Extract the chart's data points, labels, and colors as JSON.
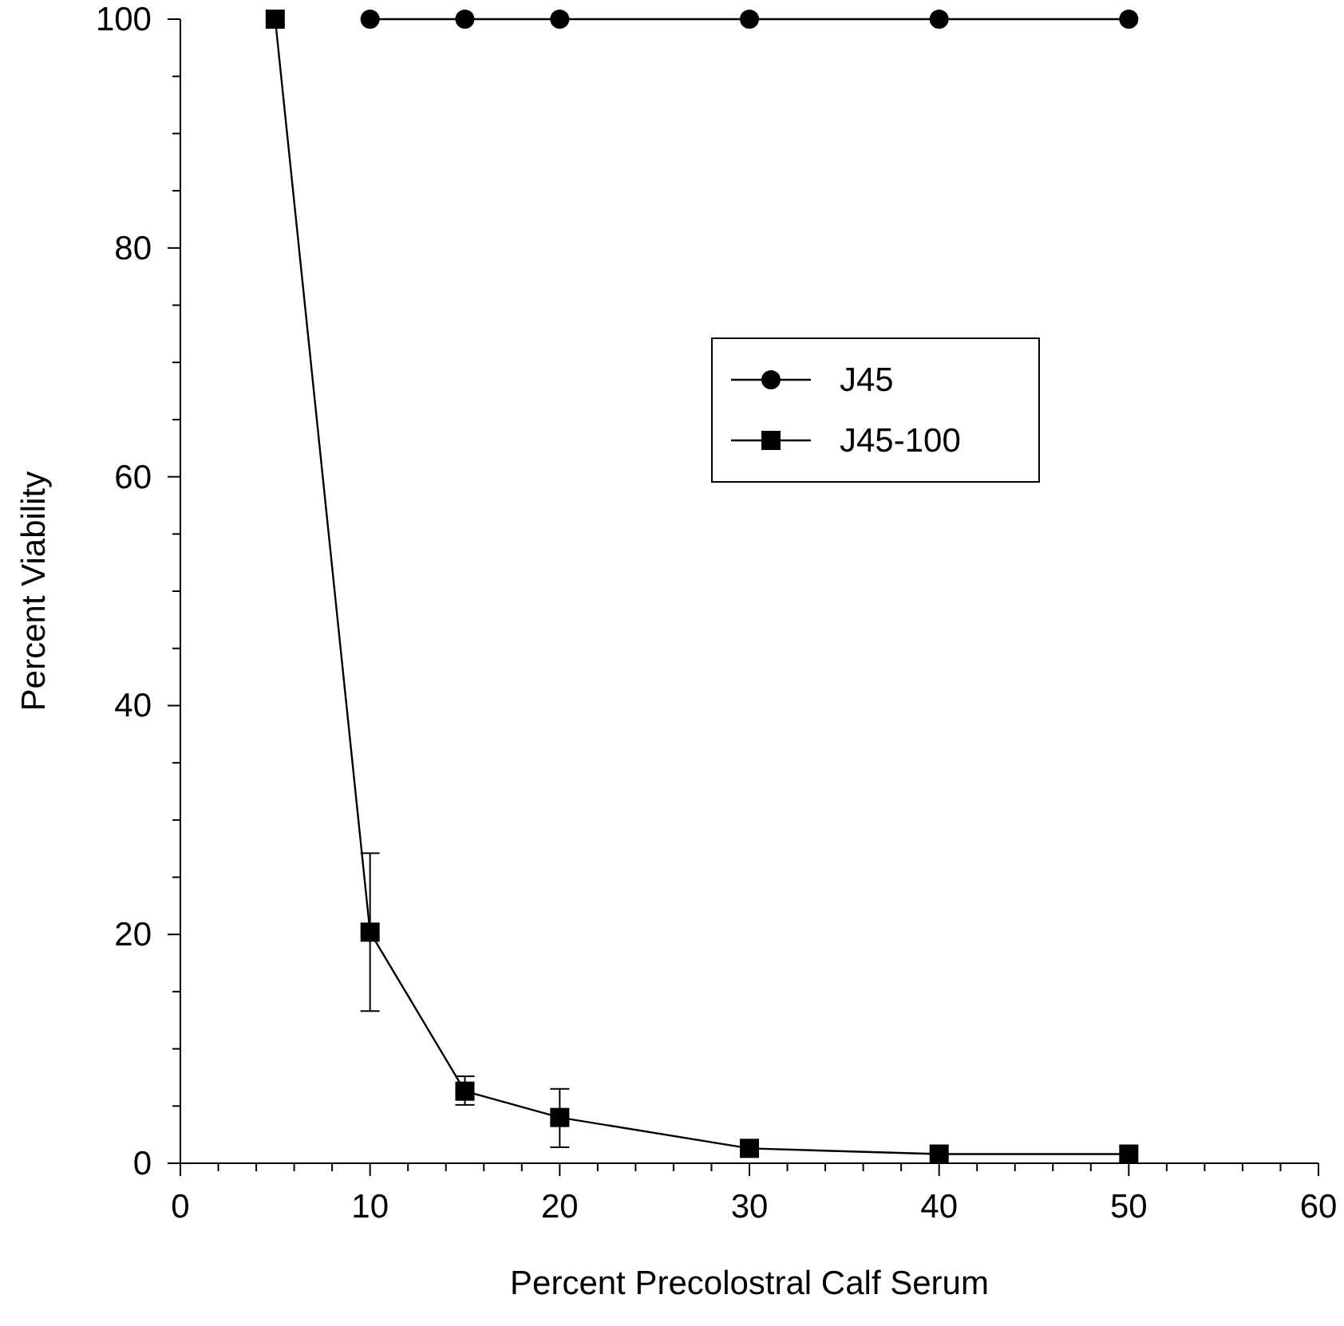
{
  "chart_data": {
    "type": "line",
    "xlabel": "Percent Precolostral Calf Serum",
    "ylabel": "Percent Viability",
    "x": [
      5,
      10,
      15,
      20,
      30,
      40,
      50
    ],
    "series": [
      {
        "name": "J45",
        "color": "#000000",
        "marker": "circle",
        "values": [
          null,
          100,
          100,
          100,
          100,
          100,
          100
        ]
      },
      {
        "name": "J45-100",
        "color": "#000000",
        "marker": "square",
        "values": [
          100,
          20.2,
          6.3,
          4.0,
          1.3,
          0.8,
          0.8
        ],
        "errors": [
          null,
          [
            13.3,
            27.1
          ],
          [
            5.1,
            7.6
          ],
          [
            1.4,
            6.5
          ],
          null,
          null,
          null
        ]
      }
    ],
    "xlim": [
      0,
      60
    ],
    "ylim": [
      0,
      100
    ],
    "xticks": [
      0,
      {
        "value": 2,
        "label": null
      },
      {
        "value": 4,
        "label": null
      },
      {
        "value": 6,
        "label": null
      },
      {
        "value": 8,
        "label": null
      },
      10,
      {
        "value": 12,
        "label": null
      },
      {
        "value": 14,
        "label": null
      },
      {
        "value": 16,
        "label": null
      },
      {
        "value": 18,
        "label": null
      },
      20,
      {
        "value": 22,
        "label": null
      },
      {
        "value": 24,
        "label": null
      },
      {
        "value": 26,
        "label": null
      },
      {
        "value": 28,
        "label": null
      },
      30,
      {
        "value": 32,
        "label": null
      },
      {
        "value": 34,
        "label": null
      },
      {
        "value": 36,
        "label": null
      },
      {
        "value": 38,
        "label": null
      },
      40,
      {
        "value": 42,
        "label": null
      },
      {
        "value": 44,
        "label": null
      },
      {
        "value": 46,
        "label": null
      },
      {
        "value": 48,
        "label": null
      },
      50,
      {
        "value": 52,
        "label": null
      },
      {
        "value": 54,
        "label": null
      },
      {
        "value": 56,
        "label": null
      },
      {
        "value": 58,
        "label": null
      },
      60
    ],
    "yticks": [
      0,
      {
        "value": 5,
        "label": null
      },
      {
        "value": 10,
        "label": null
      },
      {
        "value": 15,
        "label": null
      },
      20,
      {
        "value": 25,
        "label": null
      },
      {
        "value": 30,
        "label": null
      },
      {
        "value": 35,
        "label": null
      },
      40,
      {
        "value": 45,
        "label": null
      },
      {
        "value": 50,
        "label": null
      },
      {
        "value": 55,
        "label": null
      },
      60,
      {
        "value": 65,
        "label": null
      },
      {
        "value": 70,
        "label": null
      },
      {
        "value": 75,
        "label": null
      },
      80,
      {
        "value": 85,
        "label": null
      },
      {
        "value": 90,
        "label": null
      },
      {
        "value": 95,
        "label": null
      },
      100
    ],
    "legend": "top right",
    "grid": false,
    "line_style": "solid"
  }
}
